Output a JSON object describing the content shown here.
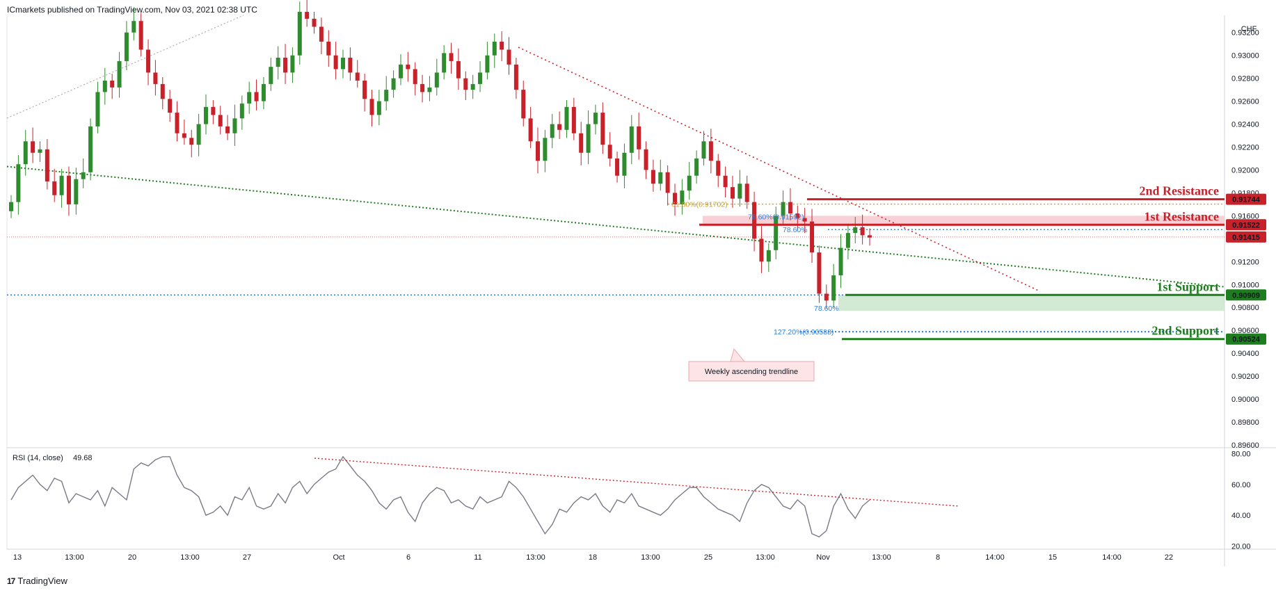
{
  "header": {
    "published": "ICmarkets published on TradingView.com, Nov 03, 2021 02:38 UTC"
  },
  "footer": {
    "logo": "17",
    "brand": "TradingView"
  },
  "colors": {
    "up": "#2e8b2e",
    "down": "#c8212a",
    "resistance": "#c8212a",
    "support": "#1e7d1e",
    "fib_blue": "#2f7fd6",
    "fib_orange": "#c9a227",
    "rsi": "#787b86",
    "zone_red": "#f5c6ca",
    "zone_green": "#cde8cf"
  },
  "chart_data": [
    {
      "type": "candlestick",
      "instrument_currency": "CHF",
      "ylim": [
        0.896,
        0.9335
      ],
      "x_ticks": [
        "13",
        "13:00",
        "20",
        "13:00",
        "27",
        "Oct",
        "6",
        "11",
        "13:00",
        "18",
        "13:00",
        "25",
        "13:00",
        "Nov",
        "13:00",
        "8",
        "14:00",
        "15",
        "14:00",
        "22"
      ],
      "y_ticks": [
        "0.93200",
        "0.93000",
        "0.92800",
        "0.92600",
        "0.92400",
        "0.92200",
        "0.92000",
        "0.91800",
        "0.91600",
        "0.91200",
        "0.91000",
        "0.90800",
        "0.90600",
        "0.90400",
        "0.90200",
        "0.90000",
        "0.89800",
        "0.89600"
      ],
      "close_series": [
        0.9172,
        0.9205,
        0.9225,
        0.9215,
        0.9218,
        0.919,
        0.9178,
        0.9195,
        0.917,
        0.9192,
        0.9198,
        0.9238,
        0.9268,
        0.9278,
        0.9272,
        0.9295,
        0.932,
        0.933,
        0.9305,
        0.9285,
        0.9275,
        0.9262,
        0.925,
        0.9232,
        0.9228,
        0.9222,
        0.924,
        0.9255,
        0.9248,
        0.9238,
        0.9232,
        0.9245,
        0.9258,
        0.9268,
        0.926,
        0.9275,
        0.929,
        0.9298,
        0.9285,
        0.93,
        0.9338,
        0.9332,
        0.9325,
        0.9312,
        0.93,
        0.9288,
        0.9298,
        0.9285,
        0.9278,
        0.9262,
        0.9248,
        0.926,
        0.927,
        0.928,
        0.9292,
        0.9288,
        0.9275,
        0.9268,
        0.9272,
        0.9285,
        0.9302,
        0.9295,
        0.928,
        0.927,
        0.9275,
        0.9285,
        0.93,
        0.9312,
        0.9305,
        0.9292,
        0.927,
        0.9245,
        0.9225,
        0.9208,
        0.9228,
        0.924,
        0.9235,
        0.9255,
        0.9232,
        0.9215,
        0.924,
        0.925,
        0.9222,
        0.921,
        0.9195,
        0.9215,
        0.9238,
        0.9218,
        0.92,
        0.9188,
        0.9198,
        0.918,
        0.917,
        0.9182,
        0.9195,
        0.921,
        0.9225,
        0.9208,
        0.9195,
        0.9185,
        0.9175,
        0.9188,
        0.9172,
        0.914,
        0.912,
        0.913,
        0.916,
        0.9172,
        0.9162,
        0.9158,
        0.9155,
        0.9128,
        0.9092,
        0.9086,
        0.9108,
        0.9132,
        0.9145,
        0.915,
        0.9143,
        0.9141
      ],
      "rsi": {
        "label": "RSI (14, close)",
        "value": "49.68",
        "y_ticks": [
          "80.00",
          "60.00",
          "40.00",
          "20.00"
        ],
        "ylim": [
          18,
          82
        ],
        "series": [
          50,
          58,
          62,
          66,
          60,
          56,
          64,
          62,
          48,
          54,
          52,
          50,
          56,
          46,
          58,
          54,
          50,
          70,
          74,
          72,
          76,
          78,
          78,
          66,
          58,
          56,
          52,
          40,
          42,
          46,
          40,
          52,
          50,
          58,
          46,
          44,
          46,
          54,
          48,
          58,
          62,
          54,
          60,
          64,
          68,
          70,
          78,
          72,
          66,
          62,
          56,
          48,
          44,
          50,
          52,
          42,
          36,
          48,
          54,
          58,
          56,
          48,
          50,
          46,
          44,
          52,
          48,
          50,
          52,
          62,
          58,
          52,
          44,
          36,
          28,
          34,
          44,
          42,
          48,
          52,
          50,
          54,
          46,
          42,
          50,
          48,
          54,
          46,
          44,
          42,
          40,
          44,
          50,
          54,
          58,
          58,
          52,
          48,
          44,
          42,
          40,
          36,
          48,
          56,
          60,
          58,
          52,
          46,
          44,
          50,
          46,
          28,
          26,
          30,
          46,
          54,
          44,
          38,
          46,
          50
        ],
        "trendline": [
          [
            0.25,
            77
          ],
          [
            0.78,
            46
          ]
        ]
      },
      "levels": [
        {
          "label": "2nd Resistance",
          "price": 0.91744,
          "price_text": "0.91744",
          "kind": "resistance"
        },
        {
          "label": "1st Resistance",
          "price": 0.91522,
          "price_text": "0.91522",
          "kind": "resistance"
        },
        {
          "label": "",
          "price": 0.91415,
          "price_text": "0.91415",
          "kind": "current"
        },
        {
          "label": "1st Support",
          "price": 0.90909,
          "price_text": "0.90909",
          "kind": "support"
        },
        {
          "label": "2nd Support",
          "price": 0.90524,
          "price_text": "0.90524",
          "kind": "support"
        }
      ],
      "fib_labels": [
        {
          "text": "61.80%(0.91702)",
          "price": 0.91702,
          "color": "orange"
        },
        {
          "text": "78.60%(0.91592)",
          "price": 0.91592,
          "color": "blue"
        },
        {
          "text": "78.60%",
          "price": 0.9148,
          "color": "blue"
        },
        {
          "text": "78.60%",
          "price": 0.90795,
          "color": "blue"
        },
        {
          "text": "127.20%(0.90588)",
          "price": 0.90588,
          "color": "blue"
        }
      ],
      "annotation": "Weekly ascending trendline"
    }
  ]
}
